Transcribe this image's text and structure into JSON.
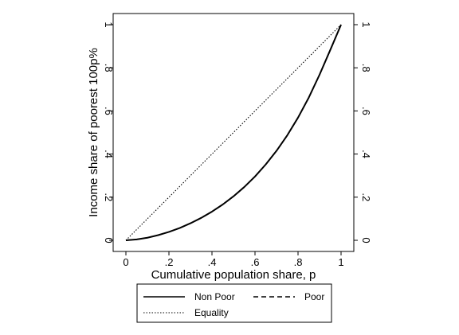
{
  "chart_data": {
    "type": "line",
    "xlabel": "Cumulative population share, p",
    "ylabel": "Income share of poorest 100p%",
    "xlim": [
      0,
      1
    ],
    "ylim": [
      0,
      1
    ],
    "x_ticks": [
      0,
      0.2,
      0.4,
      0.6,
      0.8,
      1
    ],
    "x_tick_labels": [
      "0",
      ".2",
      ".4",
      ".6",
      ".8",
      "1"
    ],
    "y_ticks": [
      0,
      0.2,
      0.4,
      0.6,
      0.8,
      1
    ],
    "y_tick_labels": [
      "0",
      ".2",
      ".4",
      ".6",
      ".8",
      "1"
    ],
    "right_axis_mirrored": true,
    "grid": false,
    "legend_position": "bottom",
    "series": [
      {
        "name": "Non Poor",
        "style": "solid",
        "color": "#000000",
        "x": [
          0,
          0.05,
          0.1,
          0.15,
          0.2,
          0.25,
          0.3,
          0.35,
          0.4,
          0.45,
          0.5,
          0.55,
          0.6,
          0.65,
          0.7,
          0.75,
          0.8,
          0.85,
          0.9,
          0.95,
          1
        ],
        "y": [
          0,
          0.004,
          0.012,
          0.024,
          0.039,
          0.057,
          0.079,
          0.104,
          0.133,
          0.166,
          0.204,
          0.247,
          0.296,
          0.352,
          0.415,
          0.487,
          0.569,
          0.662,
          0.768,
          0.883,
          1
        ]
      },
      {
        "name": "Poor",
        "style": "dashed",
        "color": "#000000",
        "x": [
          0,
          0.05,
          0.1,
          0.15,
          0.2,
          0.25,
          0.3,
          0.35,
          0.4,
          0.45,
          0.5,
          0.55,
          0.6,
          0.65,
          0.7,
          0.75,
          0.8,
          0.85,
          0.9,
          0.95,
          1
        ],
        "y": [
          0,
          0.004,
          0.012,
          0.024,
          0.039,
          0.057,
          0.079,
          0.104,
          0.133,
          0.166,
          0.204,
          0.247,
          0.296,
          0.352,
          0.415,
          0.487,
          0.569,
          0.662,
          0.768,
          0.883,
          1
        ]
      },
      {
        "name": "Equality",
        "style": "dotted",
        "color": "#000000",
        "x": [
          0,
          1
        ],
        "y": [
          0,
          1
        ]
      }
    ]
  }
}
